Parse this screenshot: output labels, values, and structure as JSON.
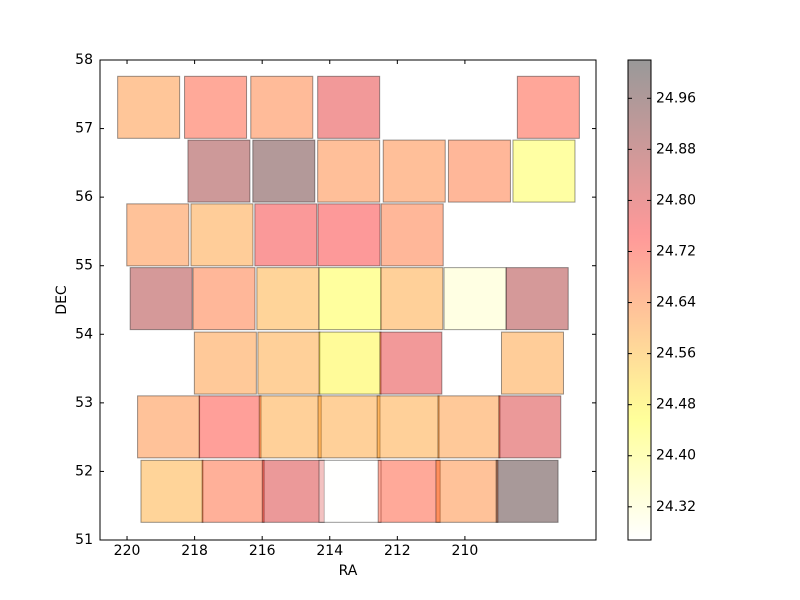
{
  "chart_data": {
    "type": "tiles",
    "xlabel": "RA",
    "ylabel": "DEC",
    "x": [
      219.36,
      217.38,
      215.42,
      213.44,
      207.53,
      217.28,
      215.36,
      213.44,
      211.5,
      209.57,
      207.66,
      219.09,
      217.19,
      215.3,
      213.43,
      211.56,
      218.99,
      217.13,
      215.24,
      213.4,
      211.57,
      209.7,
      207.86,
      217.09,
      215.21,
      213.4,
      211.6,
      208.0,
      218.77,
      216.95,
      215.17,
      213.43,
      211.68,
      209.88,
      208.08,
      218.67,
      216.86,
      215.08,
      213.4,
      211.65,
      209.94,
      208.16
    ],
    "y": [
      57.31,
      57.31,
      57.31,
      57.31,
      57.31,
      56.38,
      56.38,
      56.38,
      56.38,
      56.38,
      56.38,
      55.45,
      55.45,
      55.45,
      55.45,
      55.45,
      54.52,
      54.52,
      54.52,
      54.52,
      54.52,
      54.52,
      54.52,
      53.58,
      53.58,
      53.58,
      53.58,
      53.58,
      52.65,
      52.65,
      52.65,
      52.65,
      52.65,
      52.65,
      52.65,
      51.71,
      51.71,
      51.71,
      51.71,
      51.71,
      51.71,
      51.71
    ],
    "values": [
      24.62,
      24.7,
      24.65,
      24.78,
      24.71,
      24.88,
      24.95,
      24.64,
      24.64,
      24.66,
      24.44,
      24.63,
      24.6,
      24.76,
      24.75,
      24.66,
      24.86,
      24.66,
      24.58,
      24.45,
      24.59,
      24.32,
      24.86,
      24.61,
      24.59,
      24.47,
      24.78,
      24.6,
      24.63,
      24.73,
      24.59,
      24.59,
      24.59,
      24.61,
      24.8,
      24.58,
      24.68,
      24.8,
      24.27,
      24.7,
      24.63,
      24.98
    ],
    "colormap": "hot_r",
    "alpha": 0.4,
    "xlim": [
      220.8,
      206.12
    ],
    "xticks": [
      220,
      218,
      216,
      214,
      212,
      210
    ],
    "ylim": [
      51,
      58
    ],
    "yticks": [
      51,
      52,
      53,
      54,
      55,
      56,
      57,
      58
    ],
    "colorbar": {
      "lim": [
        24.268,
        25.02
      ],
      "ticks": [
        24.32,
        {
          "value": 24.4,
          "label": "24.40"
        },
        24.48,
        24.56,
        24.64,
        24.72,
        {
          "value": 24.8,
          "label": "24.80"
        },
        24.88,
        24.96
      ]
    }
  }
}
